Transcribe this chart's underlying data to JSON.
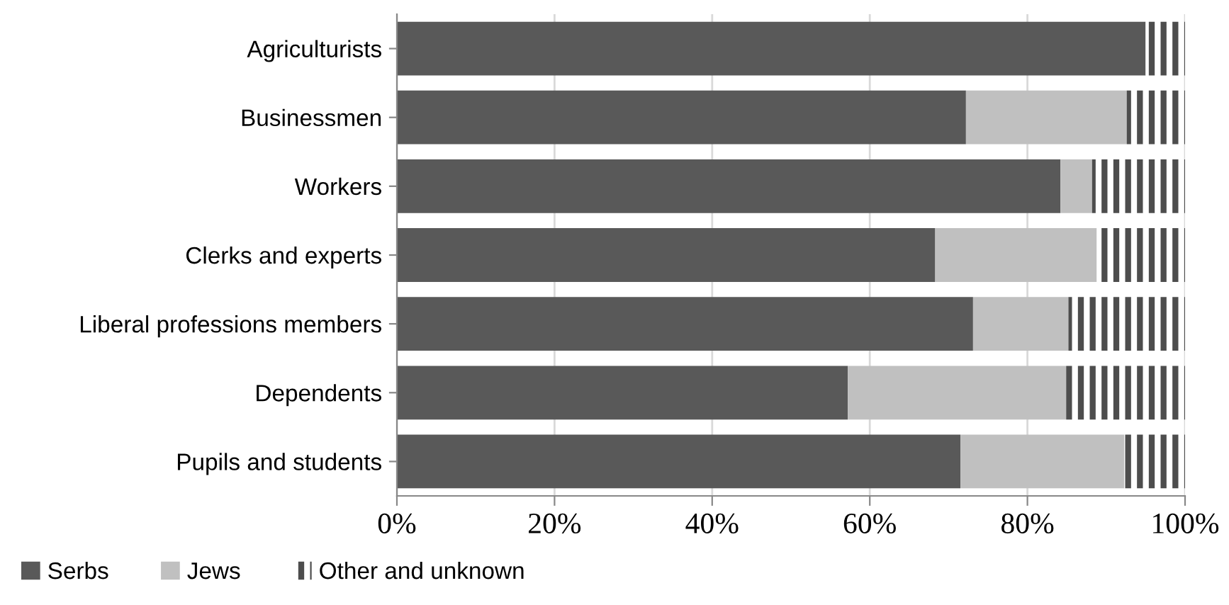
{
  "chart_data": {
    "type": "bar",
    "orientation": "horizontal",
    "stacked": true,
    "categories": [
      "Agriculturists",
      "Businessmen",
      "Workers",
      "Clerks and experts",
      "Liberal professions members",
      "Dependents",
      "Pupils and students"
    ],
    "series": [
      {
        "name": "Serbs",
        "color": "#595959",
        "values": [
          95.0,
          72.2,
          84.2,
          68.3,
          73.1,
          57.2,
          71.5
        ]
      },
      {
        "name": "Jews",
        "color": "#c0c0c0",
        "values": [
          0,
          20.4,
          4.0,
          20.5,
          12.1,
          27.7,
          20.8
        ]
      },
      {
        "name": "Other and unknown",
        "color": "#4d4d4d",
        "values": [
          5.0,
          7.4,
          11.8,
          11.2,
          14.8,
          15.1,
          7.7
        ]
      }
    ],
    "xlim": [
      0,
      100
    ],
    "xticks": [
      {
        "value": 0,
        "label": "0%"
      },
      {
        "value": 20,
        "label": "20%"
      },
      {
        "value": 40,
        "label": "40%"
      },
      {
        "value": 60,
        "label": "60%"
      },
      {
        "value": 80,
        "label": "80%"
      },
      {
        "value": 100,
        "label": "100%"
      }
    ],
    "grid": "x",
    "legend": "bottom left"
  }
}
